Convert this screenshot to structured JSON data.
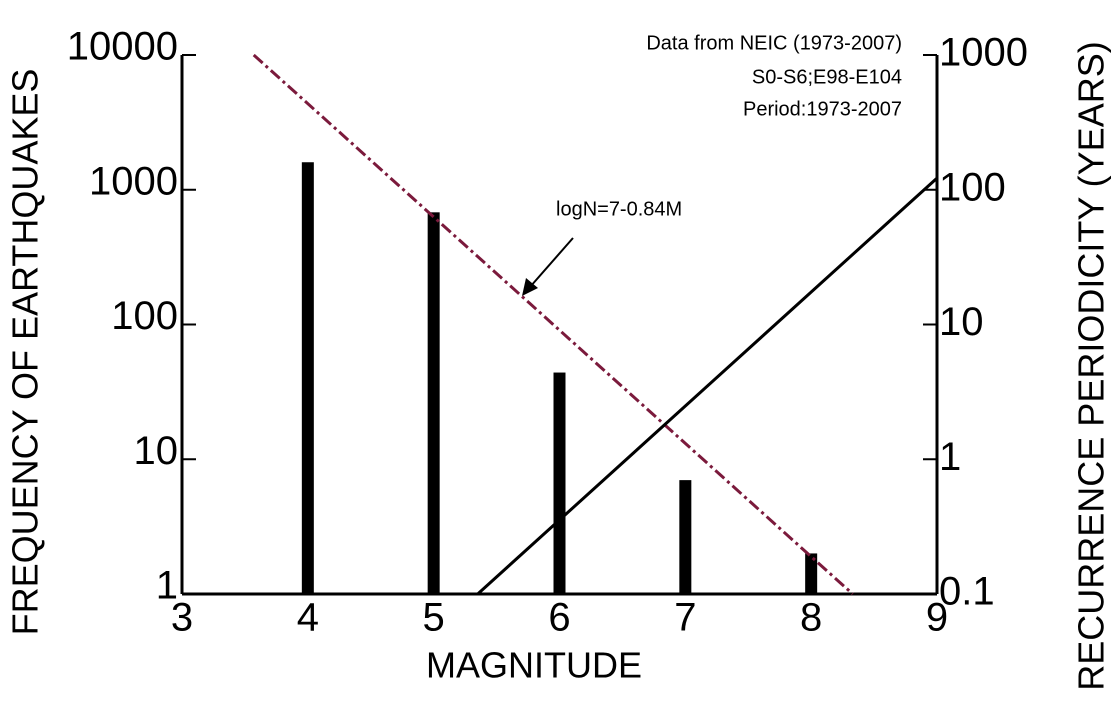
{
  "chart_data": {
    "type": "combo",
    "annotations": [
      "Data from NEIC (1973-2007)",
      "S0-S6;E98-E104",
      "Period:1973-2007",
      "logN=7-0.84M"
    ],
    "x_label": "MAGNITUDE",
    "y_label": "FREQUENCY OF EARTHQUAKES",
    "y2_label": "RECURRENCE PERIODICITY (YEARS)",
    "xlim": [
      3,
      9
    ],
    "xticks": [
      3,
      4,
      5,
      6,
      7,
      8,
      9
    ],
    "ylim": [
      1,
      10000
    ],
    "yticks": [
      1,
      10,
      100,
      1000,
      10000
    ],
    "ylog": true,
    "y2lim": [
      0.1,
      1000
    ],
    "y2ticks": [
      0.1,
      1,
      10,
      100,
      1000
    ],
    "y2log": true,
    "series": [
      {
        "type": "bar",
        "x": [
          4,
          5,
          6,
          7,
          8
        ],
        "values": [
          1600,
          680,
          44,
          7,
          2
        ],
        "color": "#000000"
      },
      {
        "type": "line",
        "x": [
          3.57,
          8.33
        ],
        "values": [
          10000,
          1
        ],
        "color": "#7b1a3c",
        "dash": "dashdot"
      },
      {
        "type": "line",
        "axis": "y2",
        "x": [
          5.35,
          9
        ],
        "values": [
          0.1,
          122
        ],
        "color": "#000000"
      }
    ]
  }
}
